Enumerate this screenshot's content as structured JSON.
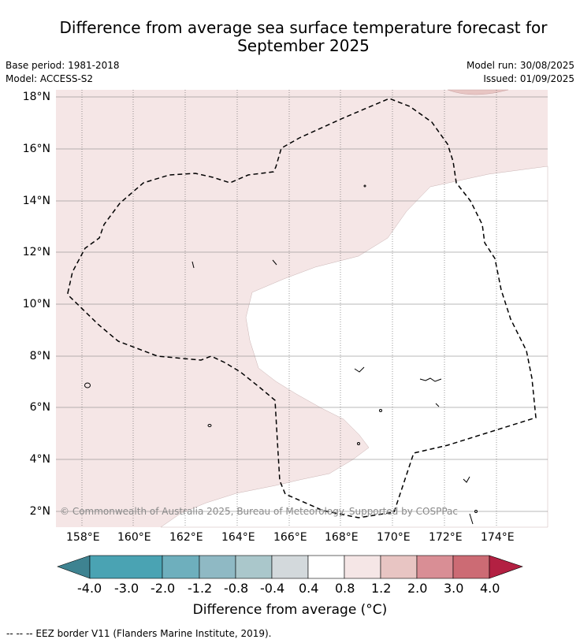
{
  "header": {
    "title_line1": "Difference from average sea surface temperature forecast for",
    "title_line2": "September 2025",
    "base_period": "Base period: 1981-2018",
    "model": "Model: ACCESS-S2",
    "model_run": "Model run: 30/08/2025",
    "issued": "Issued: 01/09/2025"
  },
  "map": {
    "lon_ticks": [
      "158°E",
      "160°E",
      "162°E",
      "164°E",
      "166°E",
      "168°E",
      "170°E",
      "172°E",
      "174°E"
    ],
    "lat_ticks": [
      "18°N",
      "16°N",
      "14°N",
      "12°N",
      "10°N",
      "8°N",
      "6°N",
      "4°N",
      "2°N"
    ],
    "copyright": "© Commonwealth of Australia 2025, Bureau of Meteorology. Supported by COSPPac",
    "fill_colors": {
      "0.4 to 0.8": "#f5e6e6",
      "0.8 to 1.2": "#e8c5c3",
      "-0.4 to 0.4": "#ffffff"
    }
  },
  "colorbar": {
    "labels": [
      "-4.0",
      "-3.0",
      "-2.0",
      "-1.2",
      "-0.8",
      "-0.4",
      "0.4",
      "0.8",
      "1.2",
      "2.0",
      "3.0",
      "4.0"
    ],
    "colors": [
      "#3e8391",
      "#4aa3b3",
      "#6eafbd",
      "#8fb9c4",
      "#aac7cb",
      "#d3d9dc",
      "#ffffff",
      "#f5e6e6",
      "#e8c5c3",
      "#d98e95",
      "#cc6b74",
      "#c24957",
      "#b32042"
    ],
    "title": "Difference from average (°C)"
  },
  "footer": {
    "eez_legend": "--  --  -- EEZ border V11 (Flanders Marine Institute, 2019)."
  }
}
